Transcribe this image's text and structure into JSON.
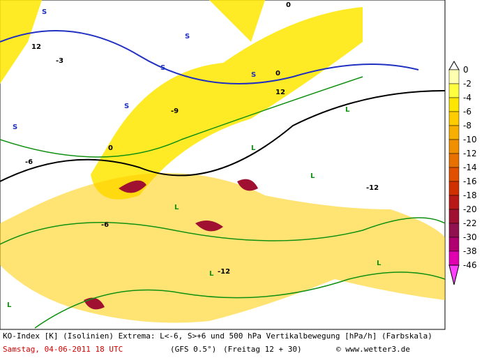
{
  "footer": {
    "line1": "KO-Index [K] (Isolinien) Extrema: L<-6, S>+6 und 500 hPa Vertikalbewegung [hPa/h] (Farbskala)",
    "date": "Samstag, 04-06-2011  18 UTC",
    "model": "(GFS 0.5°)",
    "run": "(Freitag 12 + 30)",
    "credit": "© www.wetter3.de"
  },
  "colorbar": {
    "labels": [
      "0",
      "-2",
      "-4",
      "-6",
      "-8",
      "-10",
      "-12",
      "-14",
      "-16",
      "-18",
      "-20",
      "-22",
      "-30",
      "-38",
      "-46"
    ],
    "colors": [
      "#ffffb0",
      "#ffff40",
      "#ffe600",
      "#ffcc00",
      "#f8b000",
      "#f09000",
      "#e87000",
      "#e05000",
      "#d03000",
      "#b81818",
      "#a01030",
      "#901050",
      "#b00070",
      "#e000b0",
      "#ff40ff"
    ]
  },
  "map_labels": [
    "S",
    "S",
    "S",
    "S",
    "S",
    "S",
    "L",
    "L",
    "L",
    "L",
    "L",
    "L",
    "L",
    "0",
    "0",
    "0",
    "-6",
    "-6",
    "-12",
    "-12",
    "-3",
    "-9",
    "12",
    "12"
  ]
}
